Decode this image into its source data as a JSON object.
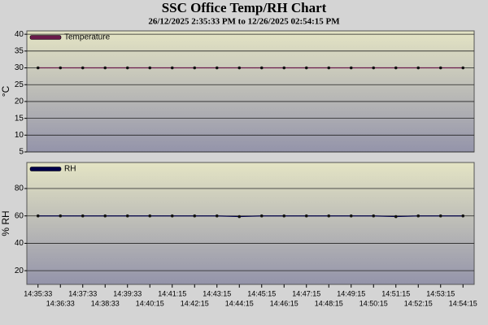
{
  "chart_data": [
    {
      "type": "line",
      "title": "SSC Office Temp/RH Chart",
      "subtitle": "26/12/2025 2:35:33 PM to 12/26/2025 02:54:15 PM",
      "ylabel": "°C",
      "ylim": [
        5,
        41
      ],
      "yticks": [
        5,
        10,
        15,
        20,
        25,
        30,
        35,
        40
      ],
      "grid": true,
      "legend": "upper left",
      "series": [
        {
          "name": "Temperature",
          "color": "#6a1a4a",
          "values": [
            30,
            30,
            30,
            30,
            30,
            30,
            30,
            30,
            30,
            30,
            30,
            30,
            30,
            30,
            30,
            30,
            30,
            30,
            30,
            30
          ]
        }
      ]
    },
    {
      "type": "line",
      "ylabel": "% RH",
      "ylim": [
        10,
        99
      ],
      "yticks": [
        20,
        40,
        60,
        80
      ],
      "grid": true,
      "legend": "upper left",
      "categories": [
        "14:35:33",
        "14:36:33",
        "14:37:33",
        "14:38:33",
        "14:39:33",
        "14:40:15",
        "14:41:15",
        "14:42:15",
        "14:43:15",
        "14:44:15",
        "14:45:15",
        "14:46:15",
        "14:47:15",
        "14:48:15",
        "14:49:15",
        "14:50:15",
        "14:51:15",
        "14:52:15",
        "14:53:15",
        "14:54:15"
      ],
      "series": [
        {
          "name": "RH",
          "color": "#000048",
          "values": [
            60,
            60,
            60,
            60,
            60,
            60,
            60,
            60,
            60,
            59.5,
            60,
            60,
            60,
            60,
            60,
            60,
            59.5,
            60,
            60,
            60
          ]
        }
      ]
    }
  ]
}
